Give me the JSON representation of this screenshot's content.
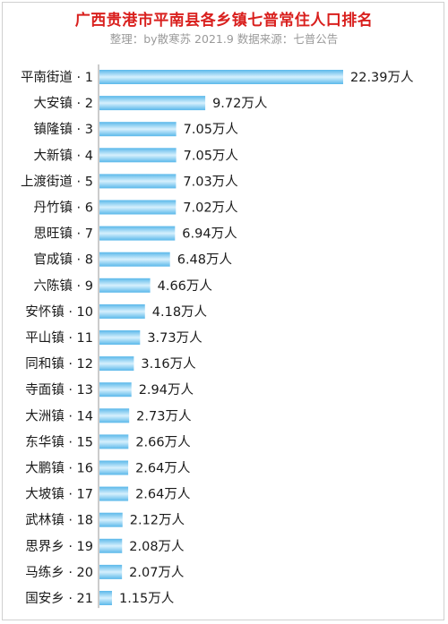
{
  "title": "广西贵港市平南县各乡镇七普常住人口排名",
  "subtitle": "整理：by散寒苏  2021.9  数据来源：七普公告",
  "chart_data": {
    "type": "bar",
    "orientation": "horizontal",
    "unit": "万人",
    "categories": [
      "平南街道 · 1",
      "大安镇 · 2",
      "镇隆镇 · 3",
      "大新镇 · 4",
      "上渡街道 · 5",
      "丹竹镇 · 6",
      "思旺镇 · 7",
      "官成镇 · 8",
      "六陈镇 · 9",
      "安怀镇 · 10",
      "平山镇 · 11",
      "同和镇 · 12",
      "寺面镇 · 13",
      "大洲镇 · 14",
      "东华镇 · 15",
      "大鹏镇 · 16",
      "大坡镇 · 17",
      "武林镇 · 18",
      "思界乡 · 19",
      "马练乡 · 20",
      "国安乡 · 21"
    ],
    "values": [
      22.39,
      9.72,
      7.05,
      7.05,
      7.03,
      7.02,
      6.94,
      6.48,
      4.66,
      4.18,
      3.73,
      3.16,
      2.94,
      2.73,
      2.66,
      2.64,
      2.64,
      2.12,
      2.08,
      2.07,
      1.15
    ],
    "value_labels": [
      "22.39万人",
      "9.72万人",
      "7.05万人",
      "7.05万人",
      "7.03万人",
      "7.02万人",
      "6.94万人",
      "6.48万人",
      "4.66万人",
      "4.18万人",
      "3.73万人",
      "3.16万人",
      "2.94万人",
      "2.73万人",
      "2.66万人",
      "2.64万人",
      "2.64万人",
      "2.12万人",
      "2.08万人",
      "2.07万人",
      "1.15万人"
    ],
    "xlim": [
      0,
      22.39
    ],
    "grid": false,
    "legend": "none",
    "colors": {
      "bar_edge": "#5ab8ea",
      "bar_center": "#d6f0fd",
      "axis": "#9a9a9a"
    }
  }
}
